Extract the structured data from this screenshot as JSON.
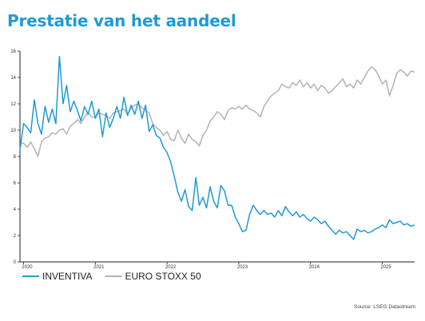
{
  "title": "Prestatie van het aandeel",
  "source": "Source: LSEG Datastream",
  "chart_data": {
    "type": "line",
    "ylim": [
      0,
      16
    ],
    "yticks": [
      "0",
      "2",
      "4",
      "6",
      "8",
      "10",
      "12",
      "14",
      "16"
    ],
    "xlim": [
      2019.95,
      2025.45
    ],
    "xticks": [
      {
        "label": "2020",
        "pos": 2020.0
      },
      {
        "label": "2021",
        "pos": 2021.0
      },
      {
        "label": "2022",
        "pos": 2022.0
      },
      {
        "label": "2023",
        "pos": 2023.0
      },
      {
        "label": "2024",
        "pos": 2024.0
      },
      {
        "label": "2025",
        "pos": 2025.0
      }
    ],
    "grid": false,
    "legend_position": "bottom-left",
    "series": [
      {
        "name": "INVENTIVA",
        "color": "#1f9ad6",
        "x": [
          2019.95,
          2020.0,
          2020.05,
          2020.1,
          2020.15,
          2020.2,
          2020.25,
          2020.3,
          2020.35,
          2020.4,
          2020.45,
          2020.5,
          2020.55,
          2020.6,
          2020.65,
          2020.7,
          2020.75,
          2020.8,
          2020.85,
          2020.9,
          2020.95,
          2021.0,
          2021.05,
          2021.1,
          2021.15,
          2021.2,
          2021.25,
          2021.3,
          2021.35,
          2021.4,
          2021.45,
          2021.5,
          2021.55,
          2021.6,
          2021.65,
          2021.7,
          2021.75,
          2021.8,
          2021.85,
          2021.9,
          2021.95,
          2022.0,
          2022.05,
          2022.1,
          2022.15,
          2022.2,
          2022.25,
          2022.3,
          2022.35,
          2022.4,
          2022.45,
          2022.5,
          2022.55,
          2022.6,
          2022.65,
          2022.7,
          2022.75,
          2022.8,
          2022.85,
          2022.9,
          2022.95,
          2023.0,
          2023.05,
          2023.1,
          2023.15,
          2023.2,
          2023.25,
          2023.3,
          2023.35,
          2023.4,
          2023.45,
          2023.5,
          2023.55,
          2023.6,
          2023.65,
          2023.7,
          2023.75,
          2023.8,
          2023.85,
          2023.9,
          2023.95,
          2024.0,
          2024.05,
          2024.1,
          2024.15,
          2024.2,
          2024.25,
          2024.3,
          2024.35,
          2024.4,
          2024.45,
          2024.5,
          2024.55,
          2024.6,
          2024.65,
          2024.7,
          2024.75,
          2024.8,
          2024.85,
          2024.9,
          2024.95,
          2025.0,
          2025.05,
          2025.1,
          2025.15,
          2025.2,
          2025.25,
          2025.3,
          2025.35,
          2025.4,
          2025.45
        ],
        "values": [
          8.5,
          10.5,
          10.2,
          9.8,
          12.3,
          10.5,
          9.7,
          11.8,
          10.6,
          11.6,
          10.5,
          15.6,
          12.0,
          13.4,
          11.4,
          12.2,
          11.5,
          10.7,
          11.8,
          11.2,
          12.2,
          10.9,
          11.6,
          9.5,
          11.3,
          10.2,
          10.9,
          11.8,
          10.9,
          12.5,
          11.1,
          11.9,
          11.2,
          12.2,
          10.9,
          11.9,
          9.9,
          10.4,
          9.6,
          9.4,
          8.7,
          8.3,
          7.6,
          6.5,
          5.3,
          4.6,
          5.5,
          4.2,
          3.9,
          6.4,
          4.3,
          4.9,
          4.1,
          5.7,
          4.6,
          4.1,
          5.8,
          5.4,
          4.3,
          4.3,
          3.4,
          2.9,
          2.3,
          2.4,
          3.6,
          4.3,
          3.9,
          3.6,
          3.9,
          3.6,
          3.7,
          3.4,
          3.9,
          3.5,
          4.2,
          3.8,
          3.5,
          3.8,
          3.4,
          3.6,
          3.3,
          3.1,
          3.4,
          3.2,
          2.9,
          3.1,
          2.7,
          2.4,
          2.1,
          2.4,
          2.2,
          2.3,
          2.0,
          1.7,
          2.5,
          2.3,
          2.4,
          2.2,
          2.3,
          2.5,
          2.6,
          2.8,
          2.6,
          3.2,
          2.9,
          3.0,
          3.1,
          2.8,
          2.9,
          2.7,
          2.8
        ]
      },
      {
        "name": "EURO STOXX 50",
        "color": "#b3b3b3",
        "x": [
          2019.95,
          2020.0,
          2020.05,
          2020.1,
          2020.15,
          2020.2,
          2020.25,
          2020.3,
          2020.35,
          2020.4,
          2020.45,
          2020.5,
          2020.55,
          2020.6,
          2020.65,
          2020.7,
          2020.75,
          2020.8,
          2020.85,
          2020.9,
          2020.95,
          2021.0,
          2021.05,
          2021.1,
          2021.15,
          2021.2,
          2021.25,
          2021.3,
          2021.35,
          2021.4,
          2021.45,
          2021.5,
          2021.55,
          2021.6,
          2021.65,
          2021.7,
          2021.75,
          2021.8,
          2021.85,
          2021.9,
          2021.95,
          2022.0,
          2022.05,
          2022.1,
          2022.15,
          2022.2,
          2022.25,
          2022.3,
          2022.35,
          2022.4,
          2022.45,
          2022.5,
          2022.55,
          2022.6,
          2022.65,
          2022.7,
          2022.75,
          2022.8,
          2022.85,
          2022.9,
          2022.95,
          2023.0,
          2023.05,
          2023.1,
          2023.15,
          2023.2,
          2023.25,
          2023.3,
          2023.35,
          2023.4,
          2023.45,
          2023.5,
          2023.55,
          2023.6,
          2023.65,
          2023.7,
          2023.75,
          2023.8,
          2023.85,
          2023.9,
          2023.95,
          2024.0,
          2024.05,
          2024.1,
          2024.15,
          2024.2,
          2024.25,
          2024.3,
          2024.35,
          2024.4,
          2024.45,
          2024.5,
          2024.55,
          2024.6,
          2024.65,
          2024.7,
          2024.75,
          2024.8,
          2024.85,
          2024.9,
          2024.95,
          2025.0,
          2025.05,
          2025.1,
          2025.15,
          2025.2,
          2025.25,
          2025.3,
          2025.35,
          2025.4,
          2025.45
        ],
        "values": [
          9.0,
          9.0,
          8.7,
          9.1,
          8.6,
          8.0,
          9.1,
          9.4,
          9.5,
          9.8,
          9.7,
          10.0,
          10.1,
          9.7,
          10.3,
          10.5,
          10.8,
          10.5,
          11.0,
          11.3,
          11.0,
          11.0,
          11.3,
          11.2,
          11.1,
          10.9,
          11.3,
          11.4,
          11.5,
          11.6,
          11.2,
          11.7,
          11.9,
          12.0,
          11.7,
          11.5,
          11.3,
          10.5,
          10.2,
          10.0,
          9.6,
          9.9,
          9.3,
          9.2,
          10.0,
          9.4,
          9.0,
          9.7,
          9.3,
          9.1,
          8.8,
          9.6,
          10.0,
          10.7,
          11.0,
          11.4,
          11.2,
          10.8,
          11.5,
          11.7,
          11.6,
          11.8,
          11.6,
          11.9,
          11.6,
          11.5,
          11.3,
          11.0,
          11.8,
          12.2,
          12.6,
          12.8,
          13.0,
          13.5,
          13.3,
          13.2,
          13.6,
          13.4,
          13.8,
          13.3,
          13.6,
          13.2,
          13.5,
          13.0,
          13.4,
          13.2,
          12.8,
          13.0,
          13.3,
          13.6,
          13.9,
          13.3,
          13.5,
          13.2,
          13.8,
          13.5,
          14.0,
          14.5,
          14.8,
          14.6,
          14.1,
          13.5,
          13.8,
          12.6,
          13.4,
          14.3,
          14.6,
          14.4,
          14.1,
          14.5,
          14.4
        ]
      }
    ]
  }
}
